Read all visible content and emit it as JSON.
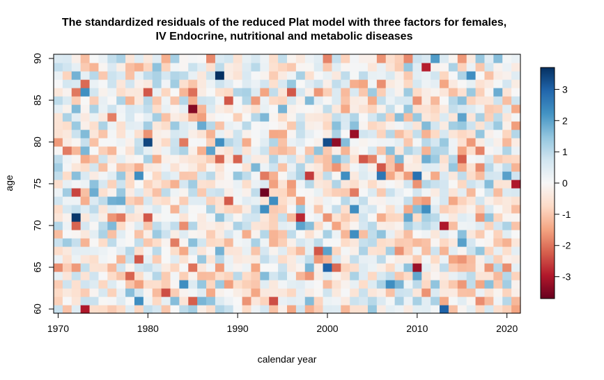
{
  "chart_data": {
    "type": "heatmap",
    "title_lines": [
      "The standardized residuals of the reduced Plat model with three factors for females,",
      "IV Endocrine, nutritional and metabolic diseases"
    ],
    "xlabel": "calendar year",
    "ylabel": "age",
    "x_range": [
      1970,
      2021
    ],
    "y_range": [
      60,
      90
    ],
    "x_ticks": [
      "1970",
      "1980",
      "1990",
      "2000",
      "2010",
      "2020"
    ],
    "y_ticks": [
      "60",
      "65",
      "70",
      "75",
      "80",
      "85",
      "90"
    ],
    "colorbar": {
      "range": [
        -3.7,
        3.7
      ],
      "ticks": [
        "-3",
        "-2",
        "-1",
        "0",
        "1",
        "2",
        "3"
      ],
      "palette": "RdBu",
      "colors": [
        "#67001f",
        "#b2182b",
        "#d6604d",
        "#f4a582",
        "#fddbc7",
        "#f7f7f7",
        "#d1e5f0",
        "#92c5de",
        "#4393c3",
        "#2166ac",
        "#053061"
      ]
    },
    "notable_cells": [
      {
        "year": 1972,
        "age": 71,
        "value": 3.6
      },
      {
        "year": 1988,
        "age": 88,
        "value": 3.7
      },
      {
        "year": 1980,
        "age": 80,
        "value": 3.4
      },
      {
        "year": 2000,
        "age": 80,
        "value": 3.3
      },
      {
        "year": 2000,
        "age": 65,
        "value": 3.0
      },
      {
        "year": 2013,
        "age": 60,
        "value": 3.0
      },
      {
        "year": 2010,
        "age": 76,
        "value": 2.8
      },
      {
        "year": 2006,
        "age": 76,
        "value": 2.7
      },
      {
        "year": 1993,
        "age": 74,
        "value": -3.6
      },
      {
        "year": 1985,
        "age": 84,
        "value": -3.4
      },
      {
        "year": 2001,
        "age": 80,
        "value": -3.3
      },
      {
        "year": 2003,
        "age": 81,
        "value": -3.2
      },
      {
        "year": 2010,
        "age": 65,
        "value": -3.2
      },
      {
        "year": 2013,
        "age": 70,
        "value": -3.0
      },
      {
        "year": 2021,
        "age": 75,
        "value": -3.0
      },
      {
        "year": 1973,
        "age": 60,
        "value": -3.0
      },
      {
        "year": 2011,
        "age": 89,
        "value": -2.9
      },
      {
        "year": 1997,
        "age": 71,
        "value": -2.8
      },
      {
        "year": 1998,
        "age": 76,
        "value": -2.6
      },
      {
        "year": 1972,
        "age": 74,
        "value": -2.5
      },
      {
        "year": 1994,
        "age": 61,
        "value": -2.4
      },
      {
        "year": 1982,
        "age": 62,
        "value": -2.4
      }
    ],
    "random_seed": 20240611
  }
}
